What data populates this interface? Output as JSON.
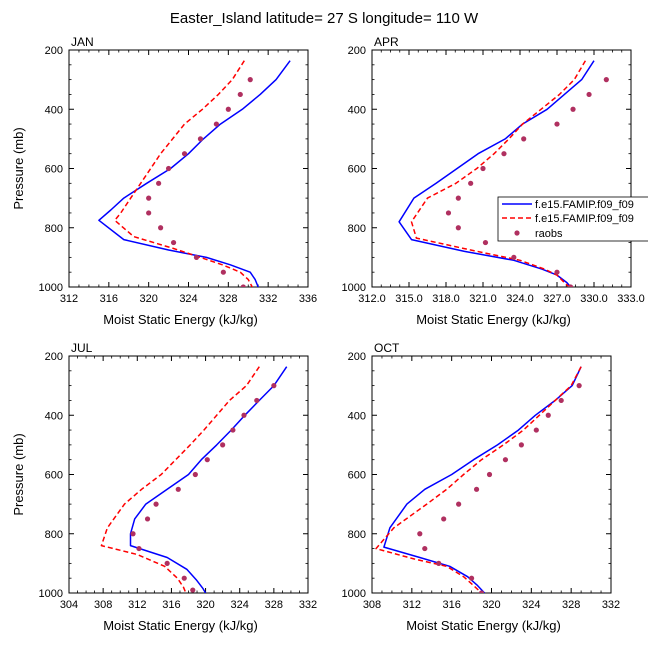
{
  "title": "Easter_Island  latitude= 27 S longitude= 110 W",
  "colors": {
    "model1": "#0000ff",
    "model2": "#ff0000",
    "raobs": "#b03060",
    "axis": "#000000"
  },
  "legend": {
    "placement": "right of APR panel",
    "entries": [
      {
        "label": "f.e15.FAMIP.f09_f09",
        "style": "solid-line",
        "color": "#0000ff"
      },
      {
        "label": "f.e15.FAMIP.f09_f09",
        "style": "dashed-line",
        "color": "#ff0000"
      },
      {
        "label": "raobs",
        "style": "dot",
        "color": "#b03060"
      }
    ]
  },
  "chart_data": [
    {
      "type": "line",
      "panel_label": "JAN",
      "xlabel": "Moist Static Energy (kJ/kg)",
      "ylabel": "Pressure (mb)",
      "xlim": [
        312,
        336
      ],
      "ylim": [
        1000,
        200
      ],
      "y_reversed": true,
      "x_ticks": [
        312,
        316,
        320,
        324,
        328,
        332,
        336
      ],
      "x_tick_labels": [
        "312",
        "316",
        "320",
        "324",
        "328",
        "332",
        "336"
      ],
      "y_ticks": [
        200,
        400,
        600,
        800,
        1000
      ],
      "y_tick_labels": [
        "200",
        "400",
        "600",
        "800",
        "1000"
      ],
      "series": [
        {
          "name": "f.e15.FAMIP.f09_f09",
          "style": "solid",
          "color": "#0000ff",
          "points": [
            [
              334.2,
              236
            ],
            [
              332.8,
              300
            ],
            [
              331.2,
              350
            ],
            [
              329.4,
              400
            ],
            [
              327.2,
              450
            ],
            [
              325.5,
              500
            ],
            [
              324,
              550
            ],
            [
              322.2,
              600
            ],
            [
              319.8,
              650
            ],
            [
              317.5,
              700
            ],
            [
              316.2,
              740
            ],
            [
              315,
              775
            ],
            [
              317.5,
              840
            ],
            [
              322,
              875
            ],
            [
              325.8,
              900
            ],
            [
              328.2,
              925
            ],
            [
              330.2,
              950
            ],
            [
              330.7,
              975
            ],
            [
              331,
              1000
            ],
            [
              331.1,
              1013
            ]
          ]
        },
        {
          "name": "f.e15.FAMIP.f09_f09",
          "style": "dashed",
          "color": "#ff0000",
          "points": [
            [
              329.6,
              236
            ],
            [
              328.4,
              300
            ],
            [
              327,
              350
            ],
            [
              325.4,
              400
            ],
            [
              323.6,
              450
            ],
            [
              322.4,
              500
            ],
            [
              321.2,
              550
            ],
            [
              320.2,
              600
            ],
            [
              319.2,
              650
            ],
            [
              318.2,
              700
            ],
            [
              317.2,
              750
            ],
            [
              316.6,
              775
            ],
            [
              318.5,
              830
            ],
            [
              322.5,
              870
            ],
            [
              325.2,
              900
            ],
            [
              327.4,
              925
            ],
            [
              329.2,
              950
            ],
            [
              330,
              975
            ],
            [
              330.4,
              1000
            ],
            [
              330.6,
              1013
            ]
          ]
        },
        {
          "name": "raobs",
          "style": "dots",
          "color": "#b03060",
          "points": [
            [
              330.2,
              300
            ],
            [
              329.2,
              350
            ],
            [
              328,
              400
            ],
            [
              326.8,
              450
            ],
            [
              325.2,
              500
            ],
            [
              323.6,
              550
            ],
            [
              322,
              600
            ],
            [
              321,
              650
            ],
            [
              320,
              700
            ],
            [
              320,
              750
            ],
            [
              321.2,
              800
            ],
            [
              322.5,
              850
            ],
            [
              324.8,
              900
            ],
            [
              327.5,
              950
            ],
            [
              329.5,
              1000
            ]
          ]
        }
      ]
    },
    {
      "type": "line",
      "panel_label": "APR",
      "xlabel": "Moist Static Energy (kJ/kg)",
      "ylabel": "",
      "xlim": [
        312,
        333
      ],
      "ylim": [
        1000,
        200
      ],
      "y_reversed": true,
      "x_ticks": [
        312,
        315,
        318,
        321,
        324,
        327,
        330,
        333
      ],
      "x_tick_labels": [
        "312.0",
        "315.0",
        "318.0",
        "321.0",
        "324.0",
        "327.0",
        "330.0",
        "333.0"
      ],
      "y_ticks": [
        200,
        400,
        600,
        800,
        1000
      ],
      "y_tick_labels": [
        "200",
        "400",
        "600",
        "800",
        "1000"
      ],
      "series": [
        {
          "name": "f.e15.FAMIP.f09_f09",
          "style": "solid",
          "color": "#0000ff",
          "points": [
            [
              330,
              236
            ],
            [
              329,
              300
            ],
            [
              327.6,
              350
            ],
            [
              326.2,
              400
            ],
            [
              324.2,
              450
            ],
            [
              322.8,
              500
            ],
            [
              320.6,
              550
            ],
            [
              318.9,
              600
            ],
            [
              317.2,
              650
            ],
            [
              315.4,
              700
            ],
            [
              314.2,
              780
            ],
            [
              315.2,
              840
            ],
            [
              319.5,
              880
            ],
            [
              323.5,
              910
            ],
            [
              325.8,
              940
            ],
            [
              327,
              960
            ],
            [
              327.8,
              985
            ],
            [
              328.1,
              1000
            ]
          ]
        },
        {
          "name": "f.e15.FAMIP.f09_f09",
          "style": "dashed",
          "color": "#ff0000",
          "points": [
            [
              329.3,
              236
            ],
            [
              328.4,
              300
            ],
            [
              327.2,
              350
            ],
            [
              325.7,
              400
            ],
            [
              324.2,
              450
            ],
            [
              323.1,
              500
            ],
            [
              321.9,
              550
            ],
            [
              320.5,
              600
            ],
            [
              318.8,
              650
            ],
            [
              316.5,
              700
            ],
            [
              315.2,
              780
            ],
            [
              315.6,
              835
            ],
            [
              320,
              875
            ],
            [
              324,
              910
            ],
            [
              326,
              940
            ],
            [
              327,
              960
            ],
            [
              327.6,
              985
            ],
            [
              328,
              1000
            ]
          ]
        },
        {
          "name": "raobs",
          "style": "dots",
          "color": "#b03060",
          "points": [
            [
              331,
              300
            ],
            [
              329.6,
              350
            ],
            [
              328.3,
              400
            ],
            [
              327,
              450
            ],
            [
              324.3,
              500
            ],
            [
              322.7,
              550
            ],
            [
              321,
              600
            ],
            [
              320,
              650
            ],
            [
              319,
              700
            ],
            [
              318.2,
              750
            ],
            [
              319,
              800
            ],
            [
              321.2,
              850
            ],
            [
              323.5,
              900
            ],
            [
              327,
              950
            ],
            [
              328.1,
              1000
            ]
          ]
        }
      ]
    },
    {
      "type": "line",
      "panel_label": "JUL",
      "xlabel": "Moist Static Energy (kJ/kg)",
      "ylabel": "Pressure (mb)",
      "xlim": [
        304,
        332
      ],
      "ylim": [
        1000,
        200
      ],
      "y_reversed": true,
      "x_ticks": [
        304,
        308,
        312,
        316,
        320,
        324,
        328,
        332
      ],
      "x_tick_labels": [
        "304",
        "308",
        "312",
        "316",
        "320",
        "324",
        "328",
        "332"
      ],
      "y_ticks": [
        200,
        400,
        600,
        800,
        1000
      ],
      "y_tick_labels": [
        "200",
        "400",
        "600",
        "800",
        "1000"
      ],
      "series": [
        {
          "name": "f.e15.FAMIP.f09_f09",
          "style": "solid",
          "color": "#0000ff",
          "points": [
            [
              329.5,
              236
            ],
            [
              328,
              300
            ],
            [
              326.3,
              350
            ],
            [
              324.6,
              400
            ],
            [
              323,
              450
            ],
            [
              321.3,
              500
            ],
            [
              319.5,
              550
            ],
            [
              318,
              600
            ],
            [
              315.5,
              650
            ],
            [
              313,
              700
            ],
            [
              311.7,
              750
            ],
            [
              311.2,
              800
            ],
            [
              311.2,
              840
            ],
            [
              315.5,
              880
            ],
            [
              317.8,
              920
            ],
            [
              318.9,
              955
            ],
            [
              319.7,
              985
            ],
            [
              320,
              1000
            ]
          ]
        },
        {
          "name": "f.e15.FAMIP.f09_f09",
          "style": "dashed",
          "color": "#ff0000",
          "points": [
            [
              326.3,
              236
            ],
            [
              324.8,
              300
            ],
            [
              322.8,
              350
            ],
            [
              321.3,
              400
            ],
            [
              319.8,
              450
            ],
            [
              318.2,
              500
            ],
            [
              316.5,
              550
            ],
            [
              314.8,
              600
            ],
            [
              312.5,
              650
            ],
            [
              310.5,
              700
            ],
            [
              308.5,
              780
            ],
            [
              307.8,
              840
            ],
            [
              312,
              870
            ],
            [
              315.2,
              910
            ],
            [
              316.7,
              950
            ],
            [
              317.4,
              980
            ],
            [
              317.7,
              1000
            ]
          ]
        },
        {
          "name": "raobs",
          "style": "dots",
          "color": "#b03060",
          "points": [
            [
              328,
              300
            ],
            [
              326,
              350
            ],
            [
              324.5,
              400
            ],
            [
              323.2,
              450
            ],
            [
              322,
              500
            ],
            [
              320.2,
              550
            ],
            [
              318.8,
              600
            ],
            [
              316.8,
              650
            ],
            [
              314.2,
              700
            ],
            [
              313.2,
              750
            ],
            [
              311.5,
              800
            ],
            [
              312.2,
              850
            ],
            [
              315.5,
              900
            ],
            [
              317.5,
              950
            ],
            [
              318.5,
              990
            ]
          ]
        }
      ]
    },
    {
      "type": "line",
      "panel_label": "OCT",
      "xlabel": "Moist Static Energy (kJ/kg)",
      "ylabel": "",
      "xlim": [
        308,
        332
      ],
      "ylim": [
        1000,
        200
      ],
      "y_reversed": true,
      "x_ticks": [
        308,
        312,
        316,
        320,
        324,
        328,
        332
      ],
      "x_tick_labels": [
        "308",
        "312",
        "316",
        "320",
        "324",
        "328",
        "332"
      ],
      "y_ticks": [
        200,
        400,
        600,
        800,
        1000
      ],
      "y_tick_labels": [
        "200",
        "400",
        "600",
        "800",
        "1000"
      ],
      "series": [
        {
          "name": "f.e15.FAMIP.f09_f09",
          "style": "solid",
          "color": "#0000ff",
          "points": [
            [
              329,
              236
            ],
            [
              328.1,
              300
            ],
            [
              326.4,
              350
            ],
            [
              324.4,
              400
            ],
            [
              322.7,
              450
            ],
            [
              320.6,
              500
            ],
            [
              318.2,
              550
            ],
            [
              316,
              600
            ],
            [
              313.3,
              650
            ],
            [
              311.5,
              700
            ],
            [
              309.8,
              780
            ],
            [
              309.2,
              845
            ],
            [
              312.8,
              880
            ],
            [
              315.8,
              910
            ],
            [
              317.6,
              945
            ],
            [
              318.6,
              975
            ],
            [
              319.3,
              1000
            ]
          ]
        },
        {
          "name": "f.e15.FAMIP.f09_f09",
          "style": "dashed",
          "color": "#ff0000",
          "points": [
            [
              329,
              236
            ],
            [
              328,
              300
            ],
            [
              326.4,
              350
            ],
            [
              324.8,
              400
            ],
            [
              323.2,
              450
            ],
            [
              321.2,
              500
            ],
            [
              319,
              550
            ],
            [
              317.2,
              600
            ],
            [
              315.5,
              650
            ],
            [
              313.5,
              700
            ],
            [
              310.2,
              780
            ],
            [
              308.4,
              850
            ],
            [
              312.2,
              885
            ],
            [
              315.5,
              910
            ],
            [
              317.2,
              945
            ],
            [
              318.2,
              975
            ],
            [
              319,
              1000
            ]
          ]
        },
        {
          "name": "raobs",
          "style": "dots",
          "color": "#b03060",
          "points": [
            [
              328.8,
              300
            ],
            [
              327,
              350
            ],
            [
              325.7,
              400
            ],
            [
              324.5,
              450
            ],
            [
              323,
              500
            ],
            [
              321.4,
              550
            ],
            [
              319.8,
              600
            ],
            [
              318.5,
              650
            ],
            [
              316.7,
              700
            ],
            [
              315.2,
              750
            ],
            [
              312.8,
              800
            ],
            [
              313.3,
              850
            ],
            [
              314.7,
              900
            ],
            [
              318,
              950
            ],
            [
              319,
              1000
            ]
          ]
        }
      ]
    }
  ]
}
